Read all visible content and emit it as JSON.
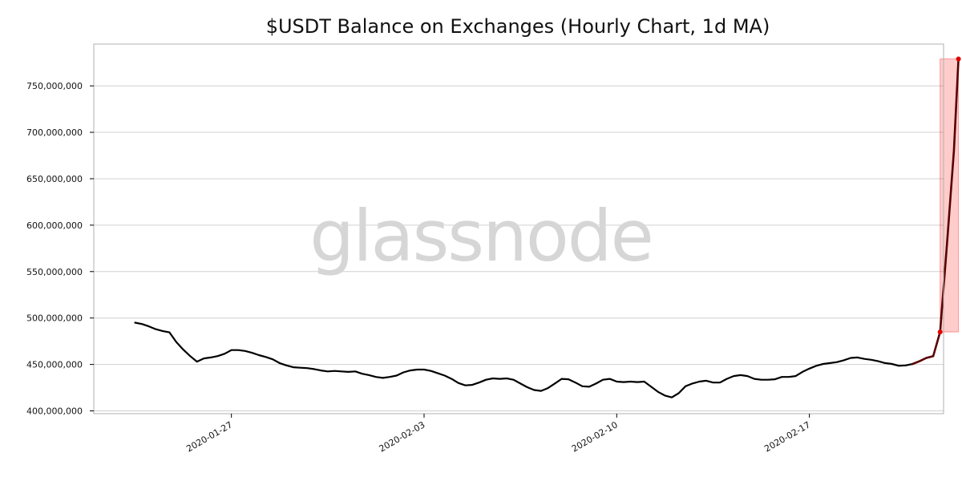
{
  "watermark": "glassnode",
  "colors": {
    "line": "#000000",
    "spike_line": "#5a0000",
    "highlight_fill": "#ff0000",
    "highlight_opacity": 0.2,
    "marker": "#e00000",
    "grid": "#d0d0d0",
    "axes": "#b0b0b0"
  },
  "chart_data": {
    "type": "line",
    "title": "$USDT Balance on Exchanges (Hourly Chart, 1d MA)",
    "xlabel": "",
    "ylabel": "",
    "grid": true,
    "legend": "none",
    "xlim": [
      "2020-01-22",
      "2020-02-21T21:00"
    ],
    "ylim": [
      397000000,
      795000000
    ],
    "y_ticks": [
      400000000,
      450000000,
      500000000,
      550000000,
      600000000,
      650000000,
      700000000,
      750000000
    ],
    "y_tick_labels": [
      "400,000,000",
      "450,000,000",
      "500,000,000",
      "550,000,000",
      "600,000,000",
      "650,000,000",
      "700,000,000",
      "750,000,000"
    ],
    "x_ticks": [
      "2020-01-27",
      "2020-02-03",
      "2020-02-10",
      "2020-02-17"
    ],
    "x_tick_labels": [
      "2020-01-27",
      "2020-02-03",
      "2020-02-10",
      "2020-02-17"
    ],
    "series": [
      {
        "x": [
          "2020-01-23T12:00",
          "2020-01-23T18:00",
          "2020-01-24T00:00",
          "2020-01-24T06:00",
          "2020-01-24T12:00",
          "2020-01-24T18:00",
          "2020-01-25T00:00",
          "2020-01-25T06:00",
          "2020-01-25T12:00",
          "2020-01-25T18:00",
          "2020-01-26T00:00",
          "2020-01-26T06:00",
          "2020-01-26T12:00",
          "2020-01-26T18:00",
          "2020-01-27T00:00",
          "2020-01-27T06:00",
          "2020-01-27T12:00",
          "2020-01-27T18:00",
          "2020-01-28T00:00",
          "2020-01-28T06:00",
          "2020-01-28T12:00",
          "2020-01-28T18:00",
          "2020-01-29T00:00",
          "2020-01-29T06:00",
          "2020-01-29T12:00",
          "2020-01-29T18:00",
          "2020-01-30T00:00",
          "2020-01-30T06:00",
          "2020-01-30T12:00",
          "2020-01-30T18:00",
          "2020-01-31T00:00",
          "2020-01-31T06:00",
          "2020-01-31T12:00",
          "2020-01-31T18:00",
          "2020-02-01T00:00",
          "2020-02-01T06:00",
          "2020-02-01T12:00",
          "2020-02-01T18:00",
          "2020-02-02T00:00",
          "2020-02-02T06:00",
          "2020-02-02T12:00",
          "2020-02-02T18:00",
          "2020-02-03T00:00",
          "2020-02-03T06:00",
          "2020-02-03T12:00",
          "2020-02-03T18:00",
          "2020-02-04T00:00",
          "2020-02-04T06:00",
          "2020-02-04T12:00",
          "2020-02-04T18:00",
          "2020-02-05T00:00",
          "2020-02-05T06:00",
          "2020-02-05T12:00",
          "2020-02-05T18:00",
          "2020-02-06T00:00",
          "2020-02-06T06:00",
          "2020-02-06T12:00",
          "2020-02-06T18:00",
          "2020-02-07T00:00",
          "2020-02-07T06:00",
          "2020-02-07T12:00",
          "2020-02-07T18:00",
          "2020-02-08T00:00",
          "2020-02-08T06:00",
          "2020-02-08T12:00",
          "2020-02-08T18:00",
          "2020-02-09T00:00",
          "2020-02-09T06:00",
          "2020-02-09T12:00",
          "2020-02-09T18:00",
          "2020-02-10T00:00",
          "2020-02-10T06:00",
          "2020-02-10T12:00",
          "2020-02-10T18:00",
          "2020-02-11T00:00",
          "2020-02-11T06:00",
          "2020-02-11T12:00",
          "2020-02-11T18:00",
          "2020-02-12T00:00",
          "2020-02-12T06:00",
          "2020-02-12T12:00",
          "2020-02-12T18:00",
          "2020-02-13T00:00",
          "2020-02-13T06:00",
          "2020-02-13T12:00",
          "2020-02-13T18:00",
          "2020-02-14T00:00",
          "2020-02-14T06:00",
          "2020-02-14T12:00",
          "2020-02-14T18:00",
          "2020-02-15T00:00",
          "2020-02-15T06:00",
          "2020-02-15T12:00",
          "2020-02-15T18:00",
          "2020-02-16T00:00",
          "2020-02-16T06:00",
          "2020-02-16T12:00",
          "2020-02-16T18:00",
          "2020-02-17T00:00",
          "2020-02-17T06:00",
          "2020-02-17T12:00",
          "2020-02-17T18:00",
          "2020-02-18T00:00",
          "2020-02-18T06:00",
          "2020-02-18T12:00",
          "2020-02-18T18:00",
          "2020-02-19T00:00",
          "2020-02-19T06:00",
          "2020-02-19T12:00",
          "2020-02-19T18:00",
          "2020-02-20T00:00",
          "2020-02-20T06:00",
          "2020-02-20T12:00",
          "2020-02-20T18:00"
        ],
        "values": [
          495000000,
          493500000,
          491000000,
          488000000,
          486000000,
          484500000,
          474000000,
          466000000,
          459000000,
          453000000,
          456500000,
          457500000,
          459000000,
          461500000,
          465500000,
          465500000,
          464500000,
          462500000,
          460000000,
          458000000,
          455500000,
          451500000,
          449000000,
          447000000,
          446500000,
          446000000,
          445000000,
          443500000,
          442500000,
          443000000,
          442500000,
          442000000,
          442500000,
          440000000,
          438500000,
          436500000,
          435500000,
          436500000,
          438000000,
          441500000,
          443500000,
          444500000,
          444500000,
          443000000,
          440500000,
          438000000,
          434500000,
          430000000,
          427500000,
          428000000,
          430500000,
          433500000,
          435000000,
          434500000,
          435000000,
          433500000,
          429500000,
          425500000,
          422500000,
          421500000,
          424500000,
          429500000,
          434500000,
          434000000,
          430500000,
          426500000,
          426000000,
          429500000,
          433500000,
          434500000,
          431500000,
          431000000,
          431500000,
          431000000,
          431500000,
          426000000,
          420500000,
          416500000,
          414500000,
          419000000,
          426500000,
          429500000,
          431500000,
          432500000,
          430500000,
          430500000,
          434500000,
          437500000,
          438500000,
          437500000,
          434500000,
          433500000,
          433500000,
          434000000,
          436500000,
          436500000,
          437500000,
          442000000,
          445500000,
          448500000,
          450500000,
          451500000,
          452500000,
          454500000,
          457000000,
          457500000,
          456000000,
          455000000,
          453500000,
          451500000,
          450500000,
          448500000,
          449000000,
          450500000
        ],
        "name": ""
      }
    ],
    "spike": {
      "x": [
        "2020-02-20T18:00",
        "2020-02-21T00:00",
        "2020-02-21T06:00",
        "2020-02-21T12:00",
        "2020-02-21T18:00",
        "2020-02-22T00:00",
        "2020-02-22T06:00",
        "2020-02-22T10:00"
      ],
      "values": [
        450500000,
        453500000,
        457000000,
        459000000,
        485000000,
        580000000,
        680000000,
        779000000
      ]
    },
    "highlight": {
      "x_start": "2020-02-21T18:00",
      "x_end": "2020-02-22T10:00",
      "y_start": 485000000,
      "y_end": 779000000
    },
    "markers": [
      {
        "x": "2020-02-21T18:00",
        "y": 485000000
      },
      {
        "x": "2020-02-22T10:00",
        "y": 779000000
      }
    ]
  }
}
